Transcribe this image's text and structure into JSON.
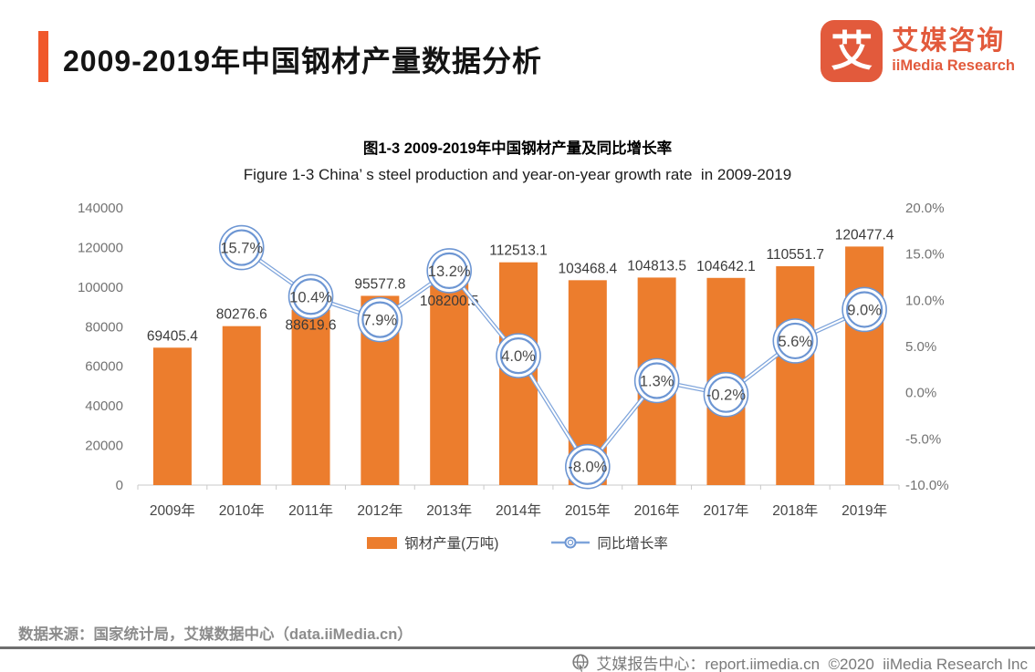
{
  "header": {
    "title": "2009-2019年中国钢材产量数据分析"
  },
  "logo": {
    "icon_glyph": "艾",
    "name_cn": "艾媒咨询",
    "name_en": "iiMedia Research",
    "color": "#E25A3C"
  },
  "accent_color": "#F0582B",
  "chart_data": {
    "type": "bar+line",
    "title": "图1-3 2009-2019年中国钢材产量及同比增长率",
    "subtitle": "Figure 1-3 China’ s steel production and year-on-year growth rate  in 2009-2019",
    "categories": [
      "2009年",
      "2010年",
      "2011年",
      "2012年",
      "2013年",
      "2014年",
      "2015年",
      "2016年",
      "2017年",
      "2018年",
      "2019年"
    ],
    "series": [
      {
        "name": "钢材产量(万吨)",
        "type": "bar",
        "axis": "left",
        "color": "#EC7D2D",
        "values": [
          69405.4,
          80276.6,
          88619.6,
          95577.8,
          108200.5,
          112513.1,
          103468.4,
          104813.5,
          104642.1,
          110551.7,
          120477.4
        ],
        "labels": [
          "69405.4",
          "80276.6",
          "88619.6",
          "95577.8",
          "108200.5",
          "112513.1",
          "103468.4",
          "104813.5",
          "104642.1",
          "110551.7",
          "120477.4"
        ],
        "label_dy": [
          0,
          0,
          30,
          0,
          46,
          0,
          0,
          0,
          0,
          0,
          0
        ]
      },
      {
        "name": "同比增长率",
        "type": "line",
        "axis": "right",
        "color": "#7EA4DB",
        "marker_color": "#6D96D3",
        "values": [
          null,
          15.7,
          10.4,
          7.9,
          13.2,
          4.0,
          -8.0,
          1.3,
          -0.2,
          5.6,
          9.0
        ],
        "labels": [
          null,
          "15.7%",
          "10.4%",
          "7.9%",
          "13.2%",
          "4.0%",
          "-8.0%",
          "1.3%",
          "-0.2%",
          "5.6%",
          "9.0%"
        ]
      }
    ],
    "left_axis": {
      "min": 0,
      "max": 140000,
      "ticks": [
        "0",
        "20000",
        "40000",
        "60000",
        "80000",
        "100000",
        "120000",
        "140000"
      ]
    },
    "right_axis": {
      "min": -10,
      "max": 20,
      "ticks": [
        "-10.0%",
        "-5.0%",
        "0.0%",
        "5.0%",
        "10.0%",
        "15.0%",
        "20.0%"
      ]
    },
    "grid": false,
    "legend_position": "bottom"
  },
  "source_note": "数据来源：国家统计局，艾媒数据中心（data.iiMedia.cn）",
  "footer": {
    "icon": "globe-cursor-icon",
    "text": "艾媒报告中心：report.iimedia.cn  ©2020  iiMedia Research Inc"
  }
}
